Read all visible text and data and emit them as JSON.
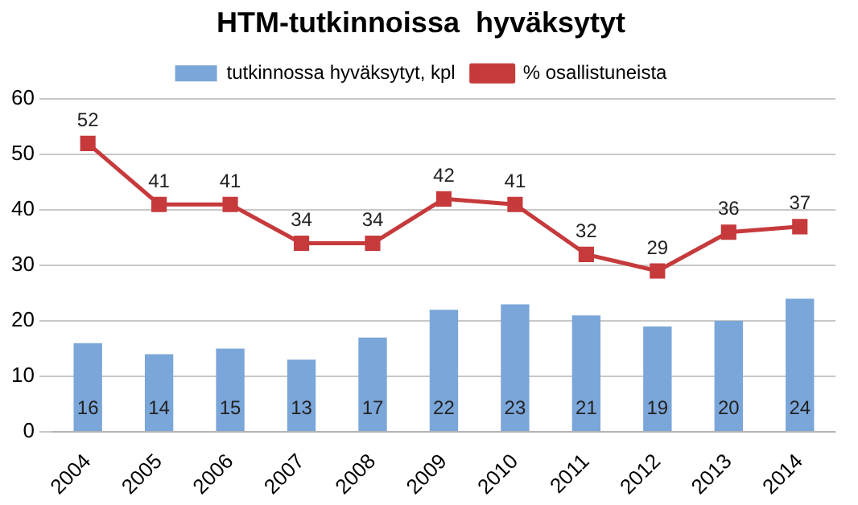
{
  "chart_data": {
    "type": "bar",
    "title": "HTM-tutkinnoissa  hyväksytyt",
    "categories": [
      "2004",
      "2005",
      "2006",
      "2007",
      "2008",
      "2009",
      "2010",
      "2011",
      "2012",
      "2013",
      "2014"
    ],
    "series": [
      {
        "name": "tutkinnossa hyväksytyt, kpl",
        "color": "#7ba6d9",
        "values": [
          16,
          14,
          15,
          13,
          17,
          22,
          23,
          21,
          19,
          20,
          24
        ]
      },
      {
        "name": "% osallistuneista",
        "type": "line",
        "color": "#c63a3c",
        "values": [
          52,
          41,
          41,
          34,
          34,
          42,
          41,
          32,
          29,
          36,
          37
        ]
      }
    ],
    "ylim": [
      0,
      60
    ],
    "yticks": [
      0,
      10,
      20,
      30,
      40,
      50,
      60
    ],
    "grid": "y",
    "legend": "top",
    "marker": "square",
    "line_style": "solid",
    "data_labels": true
  }
}
